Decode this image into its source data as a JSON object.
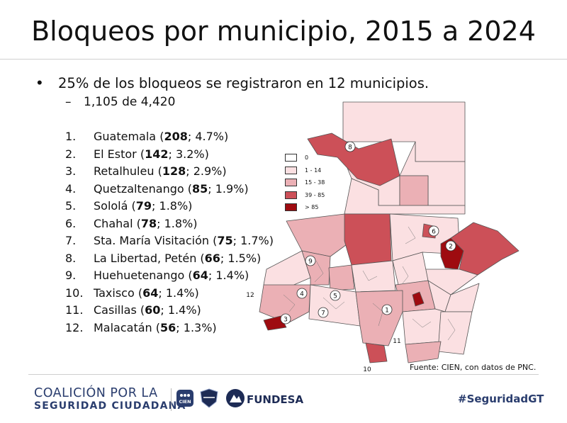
{
  "slide": {
    "title": "Bloqueos por municipio, 2015 a 2024",
    "bullet": "25% de los bloqueos se registraron en 12 municipios.",
    "sub_bullet": "1,105 de 4,420",
    "ranking": [
      {
        "num": "1.",
        "name": "Guatemala (",
        "count": "208",
        "rest": "; 4.7%)"
      },
      {
        "num": "2.",
        "name": "El Estor (",
        "count": "142",
        "rest": "; 3.2%)"
      },
      {
        "num": "3.",
        "name": "Retalhuleu (",
        "count": "128",
        "rest": "; 2.9%)"
      },
      {
        "num": "4.",
        "name": "Quetzaltenango (",
        "count": "85",
        "rest": "; 1.9%)"
      },
      {
        "num": "5.",
        "name": "Sololá (",
        "count": "79",
        "rest": "; 1.8%)"
      },
      {
        "num": "6.",
        "name": "Chahal (",
        "count": "78",
        "rest": "; 1.8%)"
      },
      {
        "num": "7.",
        "name": "Sta. María Visitación (",
        "count": "75",
        "rest": "; 1.7%)"
      },
      {
        "num": "8.",
        "name": "La Libertad, Petén (",
        "count": "66",
        "rest": "; 1.5%)"
      },
      {
        "num": "9.",
        "name": "Huehuetenango (",
        "count": "64",
        "rest": "; 1.4%)"
      },
      {
        "num": "10.",
        "name": "Taxisco (",
        "count": "64",
        "rest": "; 1.4%)"
      },
      {
        "num": "11.",
        "name": "Casillas (",
        "count": "60",
        "rest": "; 1.4%)"
      },
      {
        "num": "12.",
        "name": "Malacatán (",
        "count": "56",
        "rest": "; 1.3%)"
      }
    ]
  },
  "map": {
    "legend": [
      {
        "label": "0",
        "color": "#ffffff"
      },
      {
        "label": "1 - 14",
        "color": "#fbe0e2"
      },
      {
        "label": "15 - 38",
        "color": "#ebb0b5"
      },
      {
        "label": "39 - 85",
        "color": "#cc5058"
      },
      {
        "label": "> 85",
        "color": "#9e0b10"
      }
    ],
    "marker_labels": [
      "1",
      "2",
      "3",
      "4",
      "5",
      "6",
      "7",
      "8",
      "9",
      "10",
      "11",
      "12"
    ],
    "source": "Fuente: CIEN, con datos de PNC."
  },
  "footer": {
    "coalicion_line1": "COALICIÓN POR LA",
    "coalicion_line2": "SEGURIDAD CIUDADANA",
    "cien": "CIEN",
    "fundesa": "FUNDESA",
    "hashtag": "#SeguridadGT"
  }
}
